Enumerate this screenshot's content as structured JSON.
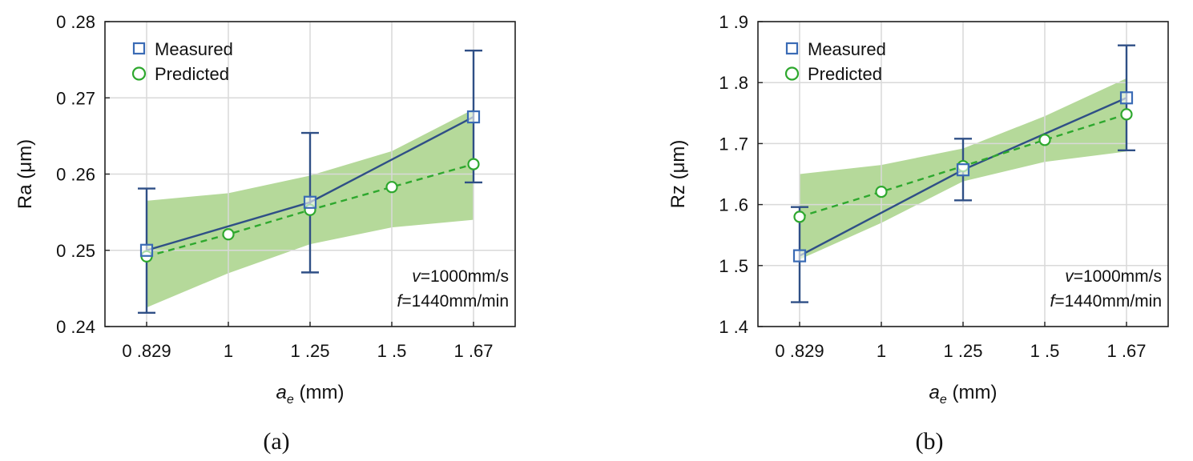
{
  "colors": {
    "measured": "#2f4f86",
    "measured_marker": "#3a6bb5",
    "predicted": "#2ea82e",
    "band": "#b5d99a",
    "grid": "#d9d9d9",
    "axis": "#222222"
  },
  "legend": {
    "measured": "Measured",
    "predicted": "Predicted"
  },
  "chart_data": [
    {
      "type": "line",
      "panel_label": "(a)",
      "ylabel": "Ra (μm)",
      "xlabel_main": "a",
      "xlabel_sub": "e",
      "xlabel_unit": " (mm)",
      "x_tick_labels": [
        "0 .829",
        "1",
        "1 .25",
        "1 .5",
        "1 .67"
      ],
      "x_tick_values": [
        0.829,
        1,
        1.25,
        1.5,
        1.67
      ],
      "y_tick_labels": [
        "0 .24",
        "0 .25",
        "0 .26",
        "0 .27",
        "0 .28"
      ],
      "y_tick_values": [
        0.24,
        0.25,
        0.26,
        0.27,
        0.28
      ],
      "ylim": [
        0.24,
        0.28
      ],
      "conditions": {
        "v_sym": "v",
        "v_text": "=1000mm/s",
        "f_sym": "f",
        "f_text": "=1440mm/min"
      },
      "measured": {
        "x": [
          0.829,
          1.25,
          1.67
        ],
        "y": [
          0.25,
          0.2563,
          0.2675
        ],
        "err_low": [
          0.2418,
          0.2471,
          0.2589
        ],
        "err_high": [
          0.2581,
          0.2654,
          0.2762
        ]
      },
      "predicted": {
        "x": [
          0.829,
          1,
          1.25,
          1.5,
          1.67
        ],
        "y": [
          0.2492,
          0.2521,
          0.2553,
          0.2583,
          0.2613
        ]
      },
      "band": {
        "x": [
          0.829,
          1,
          1.25,
          1.5,
          1.67
        ],
        "low": [
          0.2425,
          0.247,
          0.2508,
          0.253,
          0.254
        ],
        "high": [
          0.2565,
          0.2575,
          0.2598,
          0.263,
          0.2685
        ]
      }
    },
    {
      "type": "line",
      "panel_label": "(b)",
      "ylabel": "Rz (μm)",
      "xlabel_main": "a",
      "xlabel_sub": "e",
      "xlabel_unit": " (mm)",
      "x_tick_labels": [
        "0 .829",
        "1",
        "1 .25",
        "1 .5",
        "1 .67"
      ],
      "x_tick_values": [
        0.829,
        1,
        1.25,
        1.5,
        1.67
      ],
      "y_tick_labels": [
        "1 .4",
        "1 .5",
        "1 .6",
        "1 .7",
        "1 .8",
        "1 .9"
      ],
      "y_tick_values": [
        1.4,
        1.5,
        1.6,
        1.7,
        1.8,
        1.9
      ],
      "ylim": [
        1.4,
        1.9
      ],
      "conditions": {
        "v_sym": "v",
        "v_text": "=1000mm/s",
        "f_sym": "f",
        "f_text": "=1440mm/min"
      },
      "measured": {
        "x": [
          0.829,
          1.25,
          1.67
        ],
        "y": [
          1.516,
          1.657,
          1.775
        ],
        "err_low": [
          1.44,
          1.607,
          1.689
        ],
        "err_high": [
          1.596,
          1.708,
          1.861
        ]
      },
      "predicted": {
        "x": [
          0.829,
          1,
          1.25,
          1.5,
          1.67
        ],
        "y": [
          1.58,
          1.621,
          1.663,
          1.706,
          1.748
        ]
      },
      "band": {
        "x": [
          0.829,
          1,
          1.25,
          1.5,
          1.67
        ],
        "low": [
          1.51,
          1.57,
          1.638,
          1.67,
          1.687
        ],
        "high": [
          1.65,
          1.665,
          1.692,
          1.745,
          1.807
        ]
      }
    }
  ]
}
